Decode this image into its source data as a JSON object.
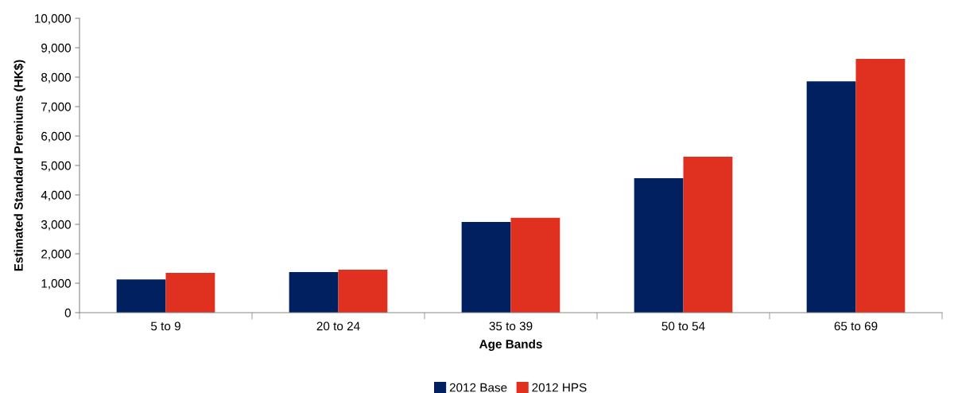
{
  "chart_data": {
    "type": "bar",
    "xlabel": "Age Bands",
    "ylabel": "Estimated Standard Premiums (HK$)",
    "categories": [
      "5 to 9",
      "20 to 24",
      "35 to 39",
      "50 to 54",
      "65 to 69"
    ],
    "series": [
      {
        "name": "2012 Base",
        "color": "#002060",
        "values": [
          1130,
          1380,
          3080,
          4570,
          7860
        ]
      },
      {
        "name": "2012 HPS",
        "color": "#e03020",
        "values": [
          1350,
          1460,
          3220,
          5300,
          8620
        ]
      }
    ],
    "ylim": [
      0,
      10000
    ],
    "yticks": [
      {
        "value": 0,
        "label": "0"
      },
      {
        "value": 1000,
        "label": "1,000"
      },
      {
        "value": 2000,
        "label": "2,000"
      },
      {
        "value": 3000,
        "label": "3,000"
      },
      {
        "value": 4000,
        "label": "4,000"
      },
      {
        "value": 5000,
        "label": "5,000"
      },
      {
        "value": 6000,
        "label": "6,000"
      },
      {
        "value": 7000,
        "label": "7,000"
      },
      {
        "value": 8000,
        "label": "8,000"
      },
      {
        "value": 9000,
        "label": "9,000"
      },
      {
        "value": 10000,
        "label": "10,000"
      }
    ],
    "grid": false,
    "legend": "bottom"
  }
}
